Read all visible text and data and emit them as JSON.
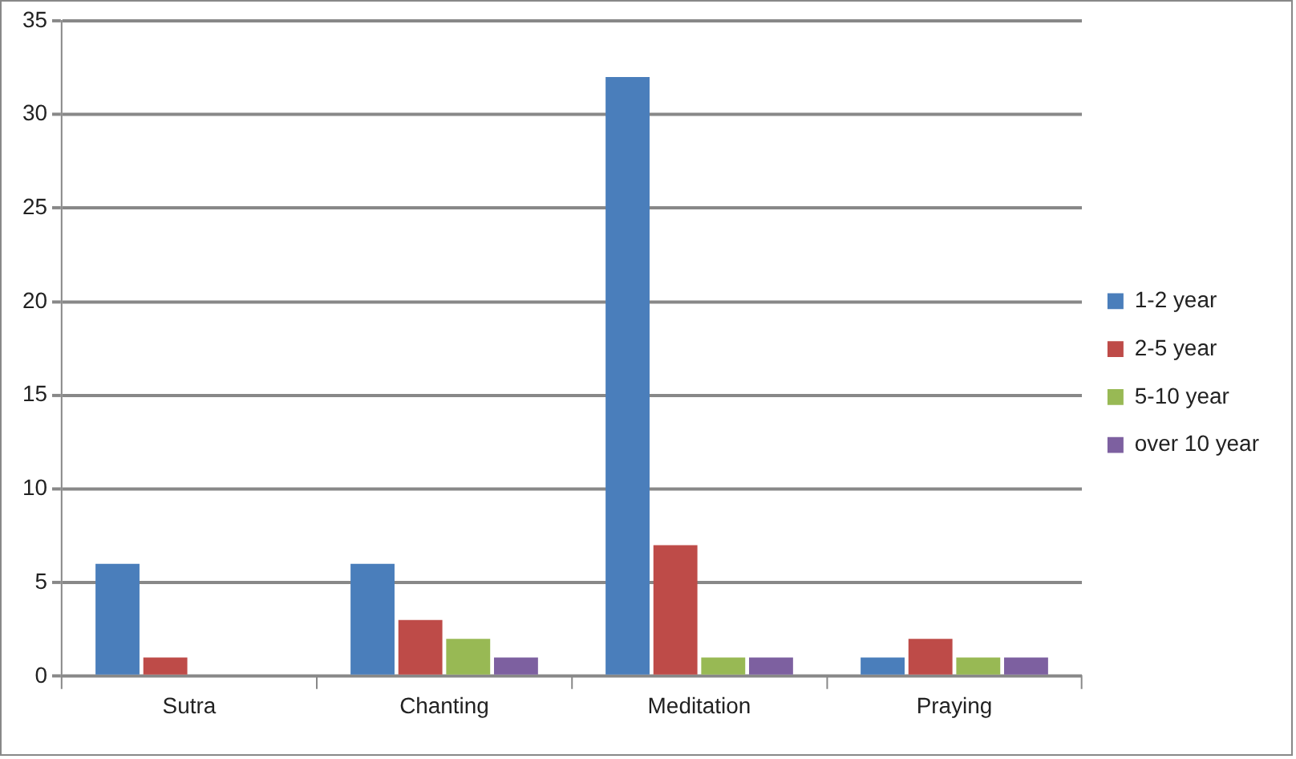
{
  "chart_data": {
    "type": "bar",
    "categories": [
      "Sutra",
      "Chanting",
      "Meditation",
      "Praying"
    ],
    "series": [
      {
        "name": "1-2 year",
        "color": "#4a7ebb",
        "values": [
          6,
          6,
          32,
          1
        ]
      },
      {
        "name": "2-5 year",
        "color": "#be4b48",
        "values": [
          1,
          3,
          7,
          2
        ]
      },
      {
        "name": "5-10 year",
        "color": "#98b954",
        "values": [
          0,
          2,
          1,
          1
        ]
      },
      {
        "name": "over 10 year",
        "color": "#7d60a0",
        "values": [
          0,
          1,
          1,
          1
        ]
      }
    ],
    "ylim": [
      0,
      35
    ],
    "yticks": [
      0,
      5,
      10,
      15,
      20,
      25,
      30,
      35
    ],
    "grid": "y",
    "legend": "right"
  }
}
